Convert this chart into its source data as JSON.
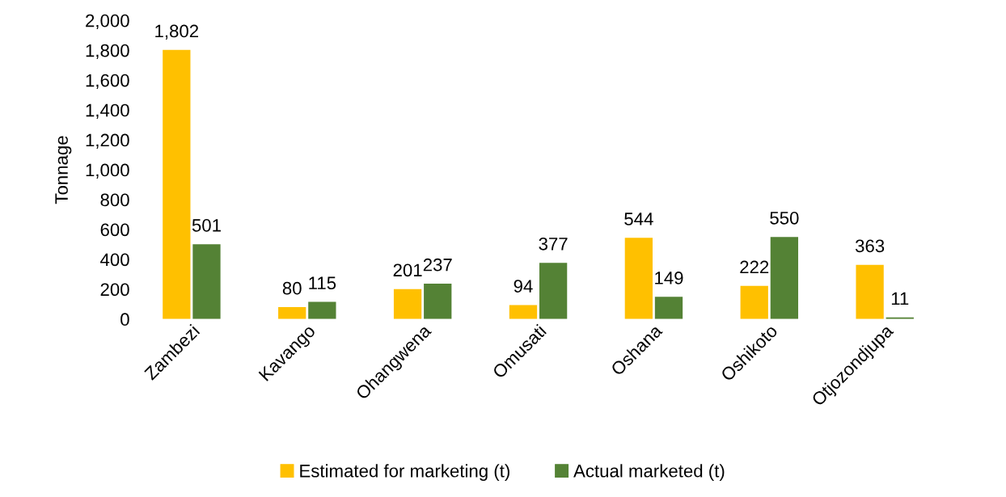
{
  "chart_data": {
    "type": "bar",
    "ylabel": "Tonnage",
    "categories": [
      "Zambezi",
      "Kavango",
      "Ohangwena",
      "Omusati",
      "Oshana",
      "Oshikoto",
      "Otjozondjupa"
    ],
    "series": [
      {
        "name": "Estimated for marketing (t)",
        "color": "#ffc000",
        "values": [
          1802,
          80,
          201,
          94,
          544,
          222,
          363
        ],
        "value_labels": [
          "1,802",
          "80",
          "201",
          "94",
          "544",
          "222",
          "363"
        ]
      },
      {
        "name": "Actual marketed (t)",
        "color": "#548235",
        "values": [
          501,
          115,
          237,
          377,
          149,
          550,
          11
        ],
        "value_labels": [
          "501",
          "115",
          "237",
          "377",
          "149",
          "550",
          "11"
        ]
      }
    ],
    "ylim": [
      0,
      2000
    ],
    "yticks": [
      0,
      200,
      400,
      600,
      800,
      {
        "value": 1000,
        "label": "1,000"
      },
      {
        "value": 1200,
        "label": "1,200"
      },
      {
        "value": 1400,
        "label": "1,400"
      },
      {
        "value": 1600,
        "label": "1,600"
      },
      {
        "value": 1800,
        "label": "1,800"
      },
      {
        "value": 2000,
        "label": "2,000"
      }
    ],
    "grid": false,
    "legend": "bottom"
  }
}
